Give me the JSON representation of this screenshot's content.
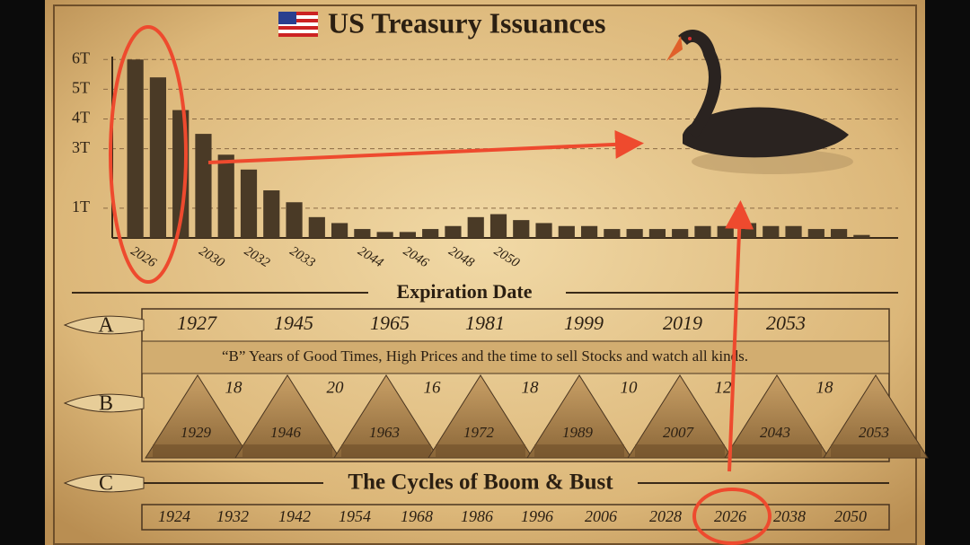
{
  "chart_data": {
    "type": "bar",
    "title": "US Treasury Issuances",
    "x_label": "Expiration Date",
    "categories": [
      "2026",
      null,
      null,
      "2030",
      null,
      "2032",
      null,
      "2033",
      null,
      null,
      "2044",
      null,
      "2046",
      null,
      "2048",
      null,
      "2050",
      null,
      null,
      null,
      null,
      null,
      null,
      null,
      null,
      null,
      null,
      null,
      null,
      null,
      null,
      null,
      null
    ],
    "values": [
      6.0,
      5.4,
      4.3,
      3.5,
      2.8,
      2.3,
      1.6,
      1.2,
      0.7,
      0.5,
      0.3,
      0.2,
      0.2,
      0.3,
      0.4,
      0.7,
      0.8,
      0.6,
      0.5,
      0.4,
      0.4,
      0.3,
      0.3,
      0.3,
      0.3,
      0.4,
      0.4,
      0.5,
      0.4,
      0.4,
      0.3,
      0.3,
      0.1
    ],
    "color": "#4a3a26",
    "ylim": [
      0,
      6.1
    ],
    "yticks": [
      {
        "value": 1,
        "label": "1T"
      },
      {
        "value": 3,
        "label": "3T"
      },
      {
        "value": 4,
        "label": "4T"
      },
      {
        "value": 5,
        "label": "5T"
      },
      {
        "value": 6,
        "label": "6T"
      }
    ],
    "grid": true
  },
  "cycles": {
    "a_label": "A",
    "b_label": "B",
    "c_label": "C",
    "a_years": [
      "1927",
      "1945",
      "1965",
      "1981",
      "1999",
      "2019",
      "2053"
    ],
    "b_caption": "“B” Years of Good Times, High Prices and the time to sell Stocks and watch all kinds.",
    "b_durations": [
      "18",
      "20",
      "16",
      "18",
      "10",
      "12",
      "18"
    ],
    "peak_years": [
      "1929",
      "1946",
      "1963",
      "1972",
      "1989",
      "2007",
      "2043",
      "2053"
    ],
    "title": "The Cycles of Boom & Bust",
    "c_years": [
      "1924",
      "1932",
      "1942",
      "1954",
      "1968",
      "1986",
      "1996",
      "2006",
      "2028",
      "2026",
      "2038",
      "2050"
    ]
  }
}
